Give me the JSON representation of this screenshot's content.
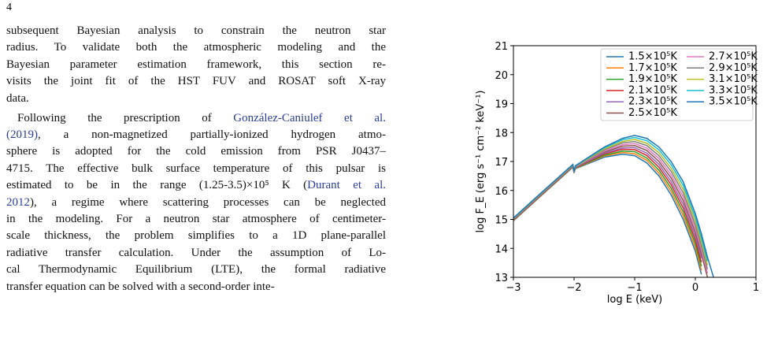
{
  "page_number": "4",
  "paragraphs": [
    [
      [
        "subsequent Bayesian analysis to constrain the neutron star"
      ],
      [
        "radius. To validate both the atmospheric modeling and the"
      ],
      [
        "Bayesian parameter estimation framework, this section re-"
      ],
      [
        "visits the joint fit of the HST FUV and ROSAT soft X-ray"
      ],
      [
        "data."
      ]
    ],
    [
      [
        "Following the prescription of ",
        {
          "text": "González-Caniulef et al.",
          "link": true
        }
      ],
      [
        {
          "text": "(2019)",
          "link": true
        },
        ", a non-magnetized partially-ionized hydrogen atmo-"
      ],
      [
        "sphere is adopted for the cold emission from PSR J0437–"
      ],
      [
        "4715. The effective bulk surface temperature of this pulsar is"
      ],
      [
        "estimated to be in the range (1.25-3.5)×10⁵ K (",
        {
          "text": "Durant et al.",
          "link": true
        }
      ],
      [
        {
          "text": "2012",
          "link": true
        },
        "), a regime where scattering processes can be neglected"
      ],
      [
        "in the modeling. For a neutron star atmosphere of centimeter-"
      ],
      [
        "scale thickness, the problem simplifies to a 1D plane-parallel"
      ],
      [
        "radiative transfer calculation. Under the assumption of Lo-"
      ],
      [
        "cal Thermodynamic Equilibrium (LTE), the formal radiative"
      ],
      [
        "transfer equation can be solved with a second-order inte-"
      ]
    ]
  ],
  "chart_data": {
    "type": "line",
    "xlabel": "log E (keV)",
    "ylabel": "log F_E (erg s⁻¹ cm⁻² keV⁻¹)",
    "x": [
      -3,
      -2.5,
      -2.02,
      -2,
      -1.98,
      -1.5,
      -1.2,
      -1,
      -0.8,
      -0.6,
      -0.4,
      -0.2,
      0,
      0.1,
      0.2,
      0.3
    ],
    "xlim": [
      -3,
      1
    ],
    "xticks": [
      {
        "value": -3,
        "label": "−3"
      },
      {
        "value": -2,
        "label": "−2"
      },
      {
        "value": -1,
        "label": "−1"
      },
      0,
      1
    ],
    "ylim": [
      13,
      21
    ],
    "yticks": [
      13,
      14,
      15,
      16,
      17,
      18,
      19,
      20,
      21
    ],
    "legend": "upper right",
    "series": [
      {
        "name": "1.5×10⁵K",
        "color": "#1f77b4",
        "values": [
          14.95,
          15.9,
          16.8,
          16.6,
          16.75,
          17.15,
          17.25,
          17.2,
          16.95,
          16.5,
          15.85,
          15.0,
          13.9,
          13.1,
          null,
          null
        ]
      },
      {
        "name": "1.7×10⁵K",
        "color": "#ff7f0e",
        "values": [
          14.96,
          15.91,
          16.81,
          16.61,
          16.76,
          17.19,
          17.31,
          17.27,
          17.04,
          16.6,
          15.97,
          15.13,
          14.03,
          13.24,
          null,
          null
        ]
      },
      {
        "name": "1.9×10⁵K",
        "color": "#2ca02c",
        "values": [
          14.97,
          15.92,
          16.82,
          16.61,
          16.77,
          17.22,
          17.36,
          17.34,
          17.12,
          16.7,
          16.08,
          15.26,
          14.16,
          13.38,
          null,
          null
        ]
      },
      {
        "name": "2.1×10⁵K",
        "color": "#d62728",
        "values": [
          14.98,
          15.93,
          16.83,
          16.62,
          16.78,
          17.26,
          17.42,
          17.41,
          17.21,
          16.8,
          16.2,
          15.39,
          14.29,
          13.52,
          null,
          null
        ]
      },
      {
        "name": "2.3×10⁵K",
        "color": "#9467bd",
        "values": [
          14.99,
          15.94,
          16.84,
          16.62,
          16.79,
          17.29,
          17.47,
          17.48,
          17.29,
          16.9,
          16.31,
          15.52,
          14.42,
          13.66,
          null,
          null
        ]
      },
      {
        "name": "2.5×10⁵K",
        "color": "#8c564b",
        "values": [
          15.0,
          15.95,
          16.85,
          16.63,
          16.8,
          17.33,
          17.53,
          17.55,
          17.38,
          17.0,
          16.43,
          15.65,
          14.55,
          13.8,
          13.0,
          null
        ]
      },
      {
        "name": "2.7×10⁵K",
        "color": "#e377c2",
        "values": [
          15.01,
          15.96,
          16.86,
          16.63,
          16.81,
          17.36,
          17.58,
          17.62,
          17.46,
          17.1,
          16.54,
          15.78,
          14.68,
          13.94,
          13.14,
          null
        ]
      },
      {
        "name": "2.9×10⁵K",
        "color": "#7f7f7f",
        "values": [
          15.02,
          15.97,
          16.87,
          16.64,
          16.82,
          17.4,
          17.64,
          17.69,
          17.55,
          17.2,
          16.66,
          15.91,
          14.81,
          14.08,
          13.28,
          null
        ]
      },
      {
        "name": "3.1×10⁵K",
        "color": "#bcbd22",
        "values": [
          15.03,
          15.98,
          16.88,
          16.64,
          16.83,
          17.43,
          17.69,
          17.76,
          17.63,
          17.3,
          16.77,
          16.04,
          14.94,
          14.22,
          13.42,
          null
        ]
      },
      {
        "name": "3.3×10⁵K",
        "color": "#17becf",
        "values": [
          15.04,
          15.99,
          16.89,
          16.65,
          16.84,
          17.47,
          17.75,
          17.83,
          17.72,
          17.4,
          16.89,
          16.17,
          15.07,
          14.36,
          13.56,
          null
        ]
      },
      {
        "name": "3.5×10⁵K",
        "color": "#1f77b4",
        "values": [
          15.05,
          16.0,
          16.9,
          16.65,
          16.85,
          17.5,
          17.8,
          17.9,
          17.8,
          17.5,
          17.0,
          16.3,
          15.2,
          14.5,
          13.7,
          13.0
        ]
      }
    ]
  }
}
